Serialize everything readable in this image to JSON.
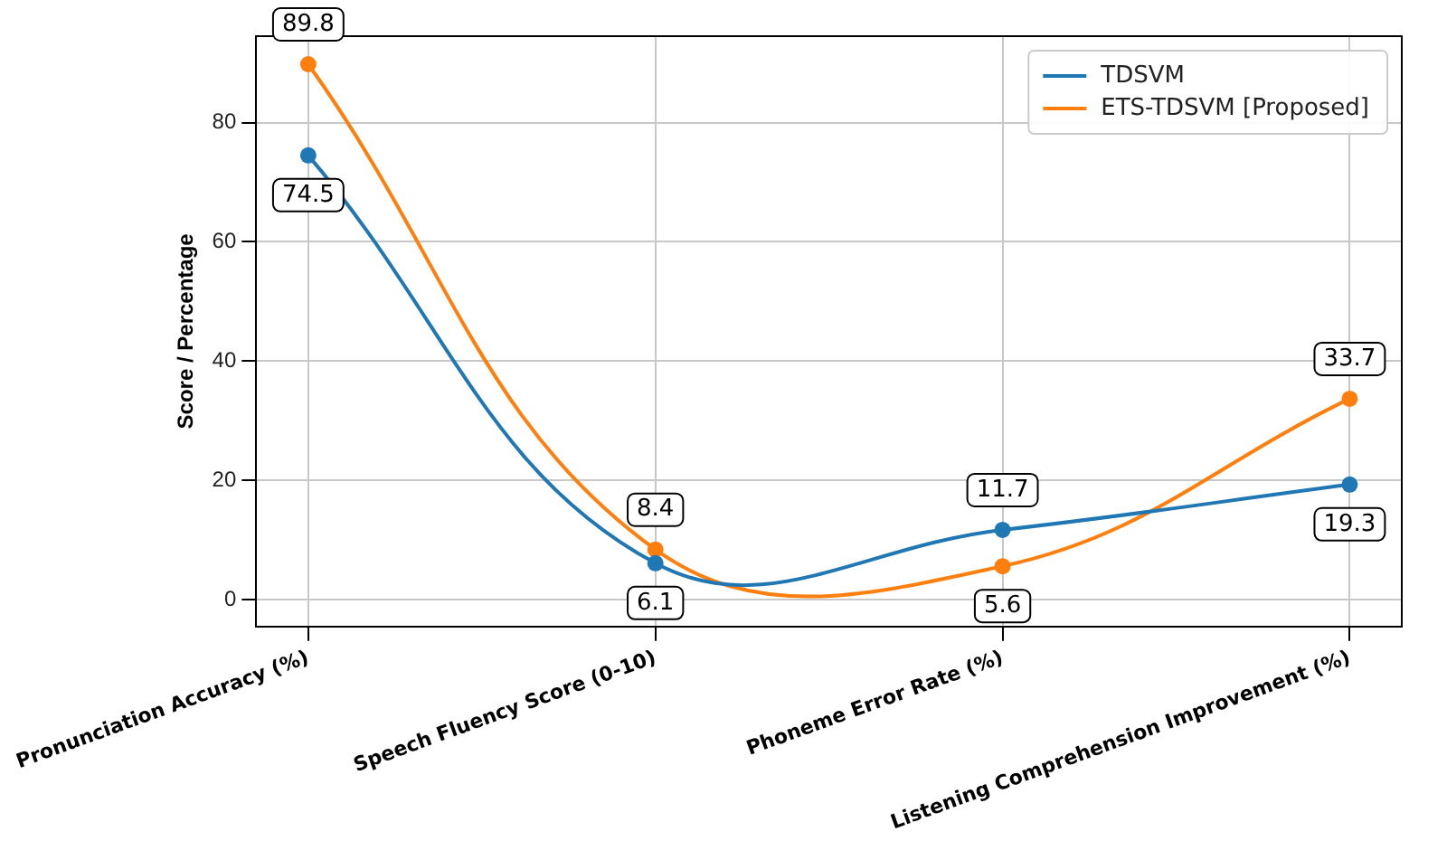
{
  "chart_data": {
    "type": "line",
    "ylabel": "Score / Percentage",
    "categories": [
      "Pronunciation Accuracy (%)",
      "Speech Fluency Score (0-10)",
      "Phoneme Error Rate (%)",
      "Listening Comprehension Improvement (%)"
    ],
    "series": [
      {
        "name": "TDSVM",
        "color": "#1f77b4",
        "values": [
          74.5,
          6.1,
          11.7,
          19.3
        ]
      },
      {
        "name": "ETS-TDSVM [Proposed]",
        "color": "#ff7f0e",
        "values": [
          89.8,
          8.4,
          5.6,
          33.7
        ]
      }
    ],
    "ylim": [
      -4.5,
      94.5
    ],
    "yticks": [
      0,
      20,
      40,
      60,
      80
    ],
    "grid": true,
    "legend": "top right",
    "marker": "circle",
    "data_labels": true
  }
}
